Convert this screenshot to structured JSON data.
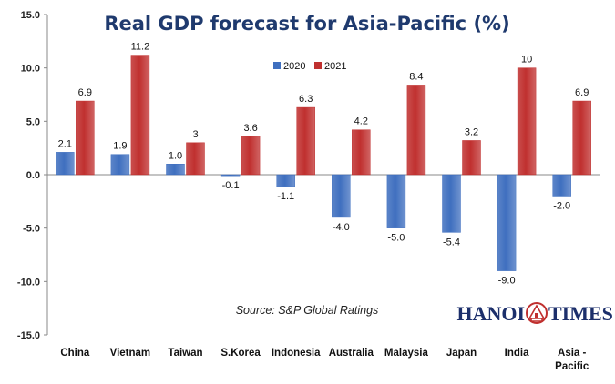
{
  "chart_data": {
    "type": "bar",
    "title": "Real GDP forecast for Asia-Pacific (%)",
    "xlabel": "",
    "ylabel": "",
    "categories": [
      "China",
      "Vietnam",
      "Taiwan",
      "S.Korea",
      "Indonesia",
      "Australia",
      "Malaysia",
      "Japan",
      "India",
      "Asia - Pacific"
    ],
    "series": [
      {
        "name": "2020",
        "color": "#3f6fbf",
        "values": [
          2.1,
          1.9,
          1.0,
          -0.1,
          -1.1,
          -4.0,
          -5.0,
          -5.4,
          -9.0,
          -2.0
        ],
        "labels": [
          "2.1",
          "1.9",
          "1.0",
          "-0.1",
          "-1.1",
          "-4.0",
          "-5.0",
          "-5.4",
          "-9.0",
          "-2.0"
        ]
      },
      {
        "name": "2021",
        "color": "#c0302f",
        "values": [
          6.9,
          11.2,
          3,
          3.6,
          6.3,
          4.2,
          8.4,
          3.2,
          10,
          6.9
        ],
        "labels": [
          "6.9",
          "11.2",
          "3",
          "3.6",
          "6.3",
          "4.2",
          "8.4",
          "3.2",
          "10",
          "6.9"
        ]
      }
    ],
    "ylim": [
      -15,
      15
    ],
    "yticks": [
      "15.0",
      "10.0",
      "5.0",
      "0.0",
      "-5.0",
      "-10.0",
      "-15.0"
    ],
    "ytick_values": [
      15,
      10,
      5,
      0,
      -5,
      -10,
      -15
    ],
    "grid": false,
    "legend_position": "top-right",
    "annotation": "Source: S&P Global Ratings"
  },
  "brand": {
    "left": "HANOI",
    "right": "TIMES",
    "logo_color": "#c0302f"
  }
}
